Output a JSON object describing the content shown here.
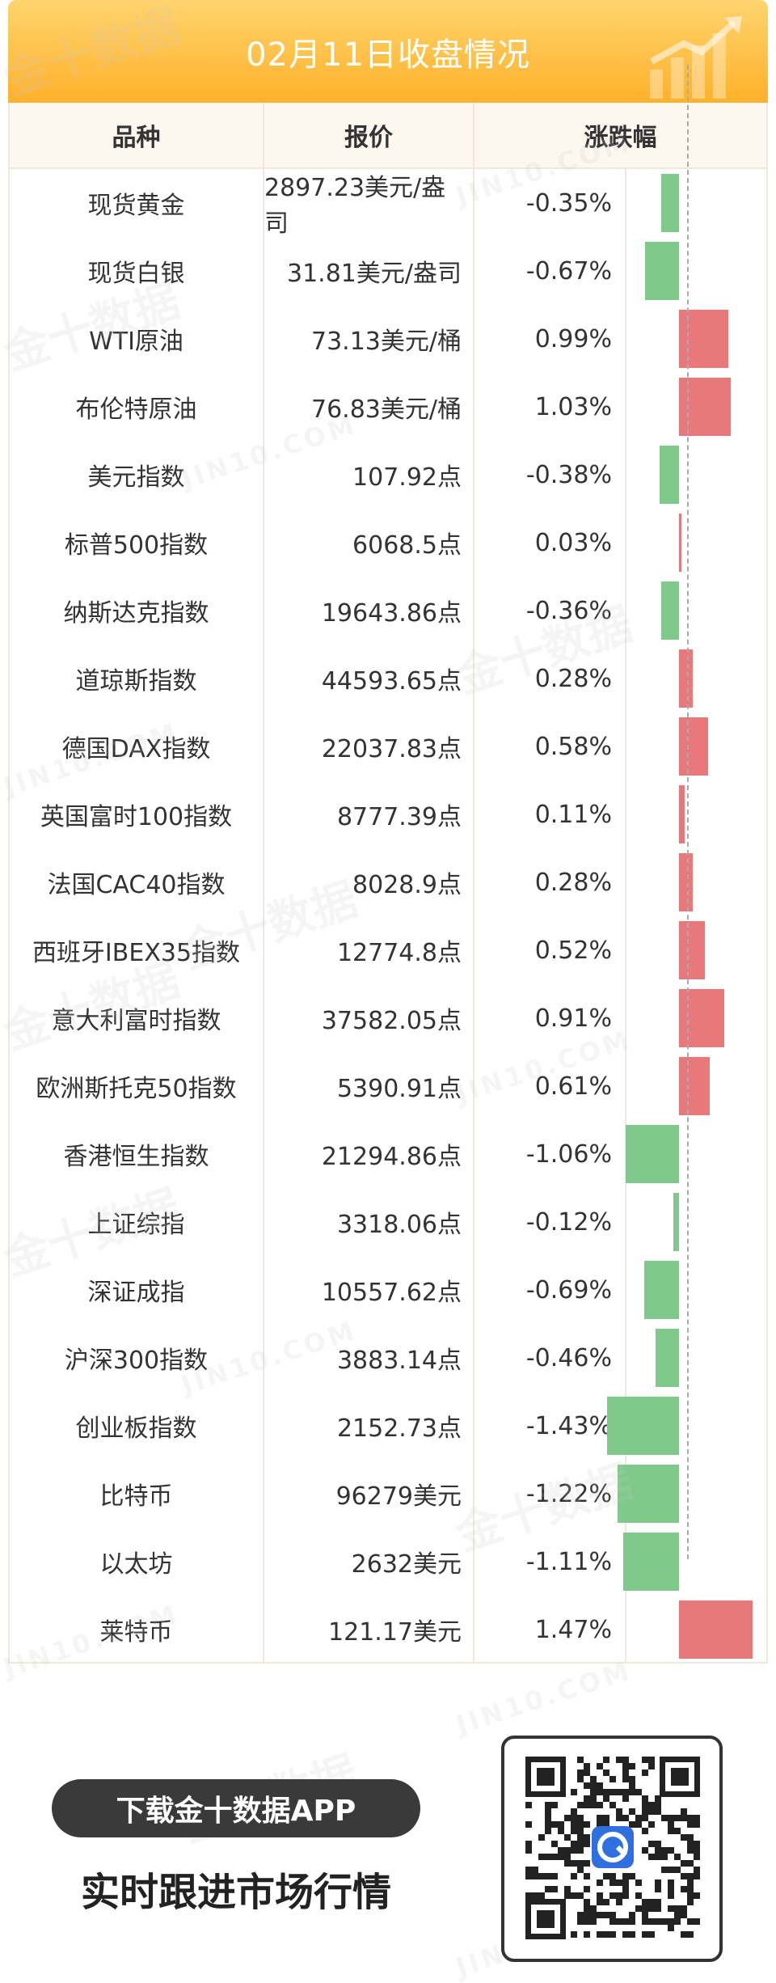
{
  "header": {
    "title": "02月11日收盘情况"
  },
  "table": {
    "columns": [
      "品种",
      "报价",
      "涨跌幅"
    ],
    "rows": [
      {
        "name": "现货黄金",
        "price": "2897.23美元/盎司",
        "change": "-0.35%",
        "pct": -0.35
      },
      {
        "name": "现货白银",
        "price": "31.81美元/盎司",
        "change": "-0.67%",
        "pct": -0.67
      },
      {
        "name": "WTI原油",
        "price": "73.13美元/桶",
        "change": "0.99%",
        "pct": 0.99
      },
      {
        "name": "布伦特原油",
        "price": "76.83美元/桶",
        "change": "1.03%",
        "pct": 1.03
      },
      {
        "name": "美元指数",
        "price": "107.92点",
        "change": "-0.38%",
        "pct": -0.38
      },
      {
        "name": "标普500指数",
        "price": "6068.5点",
        "change": "0.03%",
        "pct": 0.03
      },
      {
        "name": "纳斯达克指数",
        "price": "19643.86点",
        "change": "-0.36%",
        "pct": -0.36
      },
      {
        "name": "道琼斯指数",
        "price": "44593.65点",
        "change": "0.28%",
        "pct": 0.28
      },
      {
        "name": "德国DAX指数",
        "price": "22037.83点",
        "change": "0.58%",
        "pct": 0.58
      },
      {
        "name": "英国富时100指数",
        "price": "8777.39点",
        "change": "0.11%",
        "pct": 0.11
      },
      {
        "name": "法国CAC40指数",
        "price": "8028.9点",
        "change": "0.28%",
        "pct": 0.28
      },
      {
        "name": "西班牙IBEX35指数",
        "price": "12774.8点",
        "change": "0.52%",
        "pct": 0.52
      },
      {
        "name": "意大利富时指数",
        "price": "37582.05点",
        "change": "0.91%",
        "pct": 0.91
      },
      {
        "name": "欧洲斯托克50指数",
        "price": "5390.91点",
        "change": "0.61%",
        "pct": 0.61
      },
      {
        "name": "香港恒生指数",
        "price": "21294.86点",
        "change": "-1.06%",
        "pct": -1.06
      },
      {
        "name": "上证综指",
        "price": "3318.06点",
        "change": "-0.12%",
        "pct": -0.12
      },
      {
        "name": "深证成指",
        "price": "10557.62点",
        "change": "-0.69%",
        "pct": -0.69
      },
      {
        "name": "沪深300指数",
        "price": "3883.14点",
        "change": "-0.46%",
        "pct": -0.46
      },
      {
        "name": "创业板指数",
        "price": "2152.73点",
        "change": "-1.43%",
        "pct": -1.43
      },
      {
        "name": "比特币",
        "price": "96279美元",
        "change": "-1.22%",
        "pct": -1.22
      },
      {
        "name": "以太坊",
        "price": "2632美元",
        "change": "-1.11%",
        "pct": -1.11
      },
      {
        "name": "莱特币",
        "price": "121.17美元",
        "change": "1.47%",
        "pct": 1.47
      }
    ]
  },
  "footer": {
    "download_label": "下载金十数据APP",
    "tagline": "实时跟进市场行情"
  },
  "colors": {
    "up": "#e8787a",
    "down": "#7fca8a",
    "header": "#ffb12a"
  },
  "watermark": {
    "brand": "金十数据",
    "site": "JIN10.COM"
  }
}
